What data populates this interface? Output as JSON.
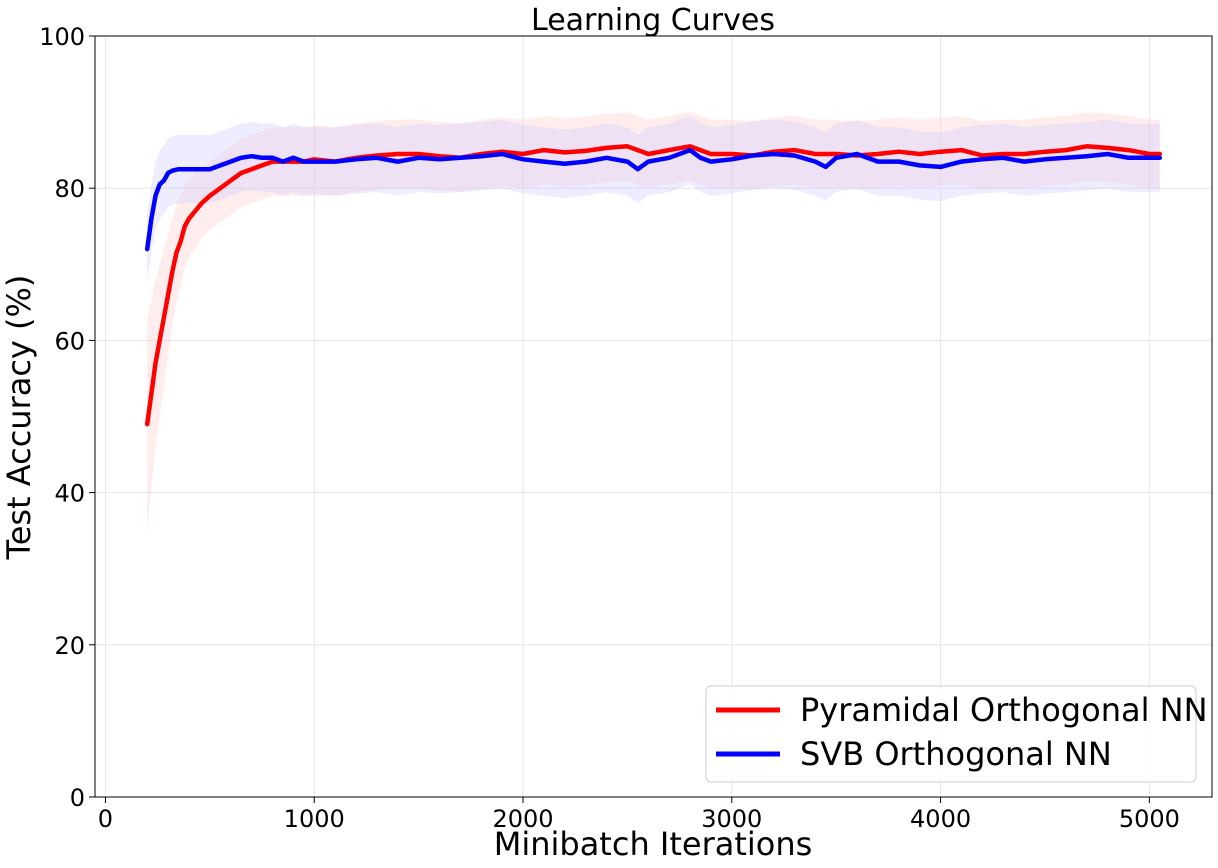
{
  "chart_data": {
    "type": "line",
    "title": "Learning Curves",
    "xlabel": "Minibatch Iterations",
    "ylabel": "Test  Accuracy (%)",
    "xlim": [
      -50,
      5300
    ],
    "ylim": [
      0,
      100
    ],
    "xticks": [
      0,
      1000,
      2000,
      3000,
      4000,
      5000
    ],
    "yticks": [
      0,
      20,
      40,
      60,
      80,
      100
    ],
    "grid": true,
    "legend_position": "bottom-right",
    "series": [
      {
        "name": "Pyramidal Orthogonal NN",
        "color": "#ff0000",
        "band_color": "#ffcccc",
        "x": [
          200,
          220,
          240,
          260,
          280,
          300,
          320,
          340,
          360,
          380,
          400,
          430,
          460,
          500,
          550,
          600,
          650,
          700,
          750,
          800,
          850,
          900,
          950,
          1000,
          1100,
          1200,
          1300,
          1400,
          1500,
          1600,
          1700,
          1800,
          1900,
          2000,
          2100,
          2200,
          2300,
          2400,
          2500,
          2600,
          2700,
          2800,
          2900,
          3000,
          3100,
          3200,
          3300,
          3400,
          3500,
          3600,
          3700,
          3800,
          3900,
          4000,
          4100,
          4200,
          4300,
          4400,
          4500,
          4600,
          4700,
          4800,
          4900,
          5000,
          5050
        ],
        "y": [
          49,
          53,
          57,
          60,
          63,
          66,
          69,
          71.5,
          73,
          75,
          76,
          77,
          78,
          79,
          80,
          81,
          82,
          82.5,
          83,
          83.5,
          83.5,
          83.5,
          83.5,
          83.8,
          83.5,
          84,
          84.3,
          84.5,
          84.5,
          84.2,
          84,
          84.5,
          84.8,
          84.5,
          85,
          84.7,
          84.9,
          85.3,
          85.5,
          84.5,
          85,
          85.5,
          84.5,
          84.5,
          84.3,
          84.8,
          85,
          84.5,
          84.5,
          84.3,
          84.5,
          84.8,
          84.5,
          84.8,
          85,
          84.3,
          84.5,
          84.5,
          84.8,
          85,
          85.5,
          85.3,
          85,
          84.5,
          84.5
        ],
        "band": [
          14,
          12,
          11,
          10,
          9,
          8,
          7,
          6.5,
          6,
          5.5,
          5,
          5,
          4.5,
          4.5,
          4.5,
          4.5,
          4.5,
          4.5,
          4.5,
          4.5,
          4.5,
          4.5,
          4.5,
          4.5,
          4.5,
          4.5,
          4.5,
          4.5,
          4.5,
          4.5,
          4.5,
          4.5,
          4.5,
          4.5,
          4.5,
          4.5,
          4.5,
          4.5,
          4.5,
          4.5,
          4.5,
          4.5,
          4.5,
          4.5,
          4.5,
          4.5,
          4.5,
          4.5,
          4.5,
          4.5,
          4.5,
          4.5,
          4.5,
          4.5,
          4.5,
          4.5,
          4.5,
          4.5,
          4.5,
          4.5,
          4.5,
          4.5,
          4.5,
          4.5,
          4.5
        ]
      },
      {
        "name": "SVB Orthogonal NN",
        "color": "#0000ff",
        "band_color": "#ccccff",
        "x": [
          200,
          220,
          240,
          260,
          280,
          300,
          320,
          350,
          400,
          450,
          500,
          550,
          600,
          650,
          700,
          750,
          800,
          850,
          900,
          950,
          1000,
          1100,
          1200,
          1300,
          1400,
          1500,
          1600,
          1700,
          1800,
          1900,
          2000,
          2100,
          2200,
          2300,
          2400,
          2500,
          2550,
          2600,
          2700,
          2800,
          2850,
          2900,
          3000,
          3100,
          3200,
          3300,
          3400,
          3450,
          3500,
          3600,
          3700,
          3800,
          3900,
          4000,
          4100,
          4200,
          4300,
          4400,
          4500,
          4600,
          4700,
          4800,
          4900,
          5000,
          5050
        ],
        "y": [
          72,
          76,
          79,
          80.5,
          81,
          82,
          82.3,
          82.5,
          82.5,
          82.5,
          82.5,
          83,
          83.5,
          84,
          84.2,
          84,
          84,
          83.5,
          84,
          83.5,
          83.5,
          83.5,
          83.8,
          84,
          83.5,
          84,
          83.8,
          84,
          84.2,
          84.5,
          83.8,
          83.5,
          83.2,
          83.5,
          84,
          83.5,
          82.5,
          83.5,
          84,
          85,
          84,
          83.5,
          83.8,
          84.3,
          84.5,
          84.3,
          83.5,
          82.8,
          84,
          84.5,
          83.5,
          83.5,
          83,
          82.8,
          83.5,
          83.8,
          84,
          83.5,
          83.8,
          84,
          84.2,
          84.5,
          84,
          84,
          84
        ]
      }
    ]
  }
}
